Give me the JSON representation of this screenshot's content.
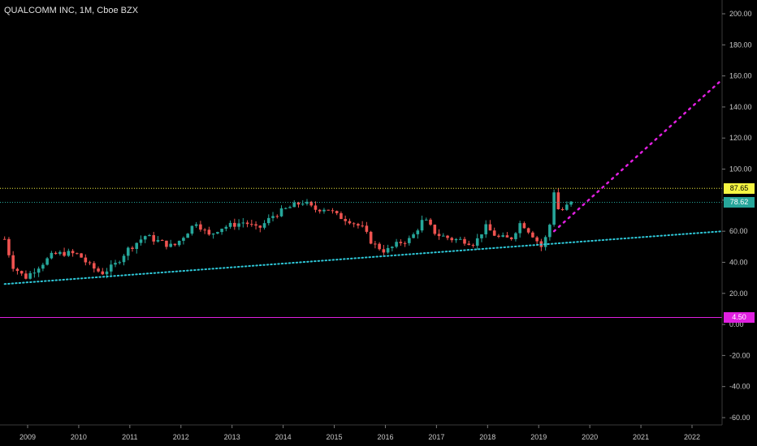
{
  "header": {
    "title": "QUALCOMM INC, 1M, Cboe BZX"
  },
  "badges": {
    "resistance": "87.65",
    "last": "78.62",
    "target": "4.50"
  },
  "colors": {
    "background": "#000000",
    "up": "#26a69a",
    "down": "#ef5350",
    "resistance_line": "#f2ef3f",
    "last_price_line": "#26a69a",
    "support_trend": "#2ec8d8",
    "projection": "#e020e0",
    "target_line": "#e020e0"
  },
  "chart_data": {
    "type": "candlestick",
    "title": "QUALCOMM INC, 1M, Cboe BZX",
    "interval": "1M",
    "x_ticks": [
      "2009",
      "2010",
      "2011",
      "2012",
      "2013",
      "2014",
      "2015",
      "2016",
      "2017",
      "2018",
      "2019",
      "2020",
      "2021",
      "2022"
    ],
    "y_ticks": [
      "200.00",
      "180.00",
      "160.00",
      "140.00",
      "120.00",
      "100.00",
      "80.00",
      "60.00",
      "40.00",
      "20.00",
      "0.00",
      "-20.00",
      "-40.00",
      "-60.00"
    ],
    "ylim": [
      -65,
      207
    ],
    "xlim": [
      2008.55,
      2022.7
    ],
    "grid": false,
    "horizontal_lines": [
      {
        "label": "87.65",
        "value": 87.65,
        "style": "dotted"
      },
      {
        "label": "78.62",
        "value": 78.62,
        "style": "dotted"
      },
      {
        "label": "4.50",
        "value": 4.5,
        "style": "solid"
      }
    ],
    "trend_lines": [
      {
        "name": "support",
        "from": [
          2008.55,
          26
        ],
        "to": [
          2022.6,
          60
        ],
        "style": "dotted"
      },
      {
        "name": "projection",
        "from": [
          2019.3,
          60
        ],
        "to": [
          2022.6,
          158
        ],
        "style": "dotted"
      }
    ],
    "anchors": [
      [
        2008.55,
        55
      ],
      [
        2008.7,
        38
      ],
      [
        2008.95,
        30
      ],
      [
        2009.2,
        37
      ],
      [
        2009.5,
        45
      ],
      [
        2009.75,
        46
      ],
      [
        2010.0,
        45
      ],
      [
        2010.2,
        38
      ],
      [
        2010.45,
        33
      ],
      [
        2010.7,
        38
      ],
      [
        2010.95,
        48
      ],
      [
        2011.3,
        57
      ],
      [
        2011.6,
        53
      ],
      [
        2011.85,
        50
      ],
      [
        2012.0,
        55
      ],
      [
        2012.3,
        66
      ],
      [
        2012.55,
        57
      ],
      [
        2012.75,
        62
      ],
      [
        2013.0,
        64
      ],
      [
        2013.25,
        66
      ],
      [
        2013.5,
        61
      ],
      [
        2013.8,
        70
      ],
      [
        2014.1,
        75
      ],
      [
        2014.4,
        79
      ],
      [
        2014.6,
        74
      ],
      [
        2014.85,
        75
      ],
      [
        2015.05,
        70
      ],
      [
        2015.3,
        67
      ],
      [
        2015.55,
        62
      ],
      [
        2015.75,
        52
      ],
      [
        2016.0,
        47
      ],
      [
        2016.3,
        53
      ],
      [
        2016.5,
        55
      ],
      [
        2016.75,
        68
      ],
      [
        2017.0,
        58
      ],
      [
        2017.3,
        55
      ],
      [
        2017.55,
        54
      ],
      [
        2017.75,
        52
      ],
      [
        2017.95,
        63
      ],
      [
        2018.2,
        56
      ],
      [
        2018.45,
        55
      ],
      [
        2018.65,
        66
      ],
      [
        2018.9,
        57
      ],
      [
        2019.05,
        50
      ],
      [
        2019.2,
        60
      ],
      [
        2019.3,
        86
      ],
      [
        2019.4,
        72
      ],
      [
        2019.55,
        76
      ],
      [
        2019.65,
        78.6
      ]
    ]
  }
}
